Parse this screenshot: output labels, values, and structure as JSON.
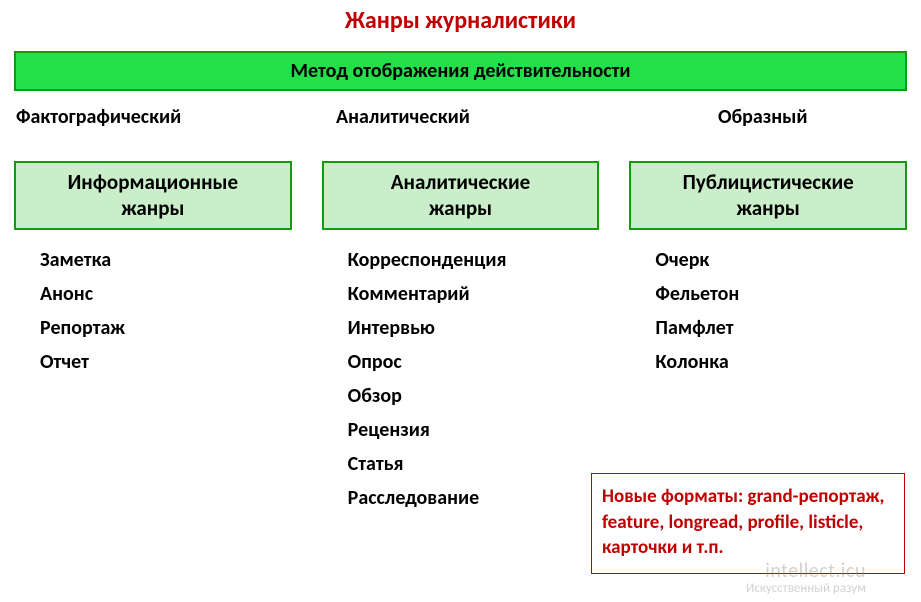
{
  "type": "infographic",
  "background_color": "#ffffff",
  "title": {
    "text": "Жанры журналистики",
    "color": "#c00000",
    "fontsize": 24,
    "weight": "bold"
  },
  "method_banner": {
    "text": "Метод отображения действительности",
    "bg_color": "#22e04a",
    "border_color": "#159a0e",
    "text_color": "#000000",
    "fontsize": 20
  },
  "methods": {
    "items": [
      "Фактографический",
      "Аналитический",
      "Образный"
    ],
    "fontsize": 20,
    "text_color": "#000000",
    "weight": "bold"
  },
  "columns": [
    {
      "header_line1": "Информационные",
      "header_line2": "жанры",
      "header_bg": "#c9eec9",
      "header_border": "#159a0e",
      "header_text_color": "#000000",
      "header_fontsize": 21,
      "items": [
        "Заметка",
        "Анонс",
        "Репортаж",
        "Отчет"
      ],
      "item_fontsize": 20,
      "item_color": "#000000"
    },
    {
      "header_line1": "Аналитические",
      "header_line2": "жанры",
      "header_bg": "#c9eec9",
      "header_border": "#159a0e",
      "header_text_color": "#000000",
      "header_fontsize": 21,
      "items": [
        "Корреспонденция",
        "Комментарий",
        "Интервью",
        "Опрос",
        "Обзор",
        "Рецензия",
        "Статья",
        "Расследование"
      ],
      "item_fontsize": 20,
      "item_color": "#000000"
    },
    {
      "header_line1": "Публицистические",
      "header_line2": "жанры",
      "header_bg": "#c9eec9",
      "header_border": "#159a0e",
      "header_text_color": "#000000",
      "header_fontsize": 21,
      "items": [
        "Очерк",
        "Фельетон",
        "Памфлет",
        "Колонка"
      ],
      "item_fontsize": 20,
      "item_color": "#000000"
    }
  ],
  "new_formats": {
    "text": "Новые форматы: grand-репортаж, feature, longread, profile, listicle, карточки и т.п.",
    "border_color": "#c00000",
    "text_color": "#c00000",
    "fontsize": 19,
    "weight": "bold",
    "bg_color": "#ffffff"
  },
  "watermark": {
    "brand": "intellect.icu",
    "subtitle": "Искусственный разум",
    "color": "#888888",
    "opacity": 0.38
  }
}
